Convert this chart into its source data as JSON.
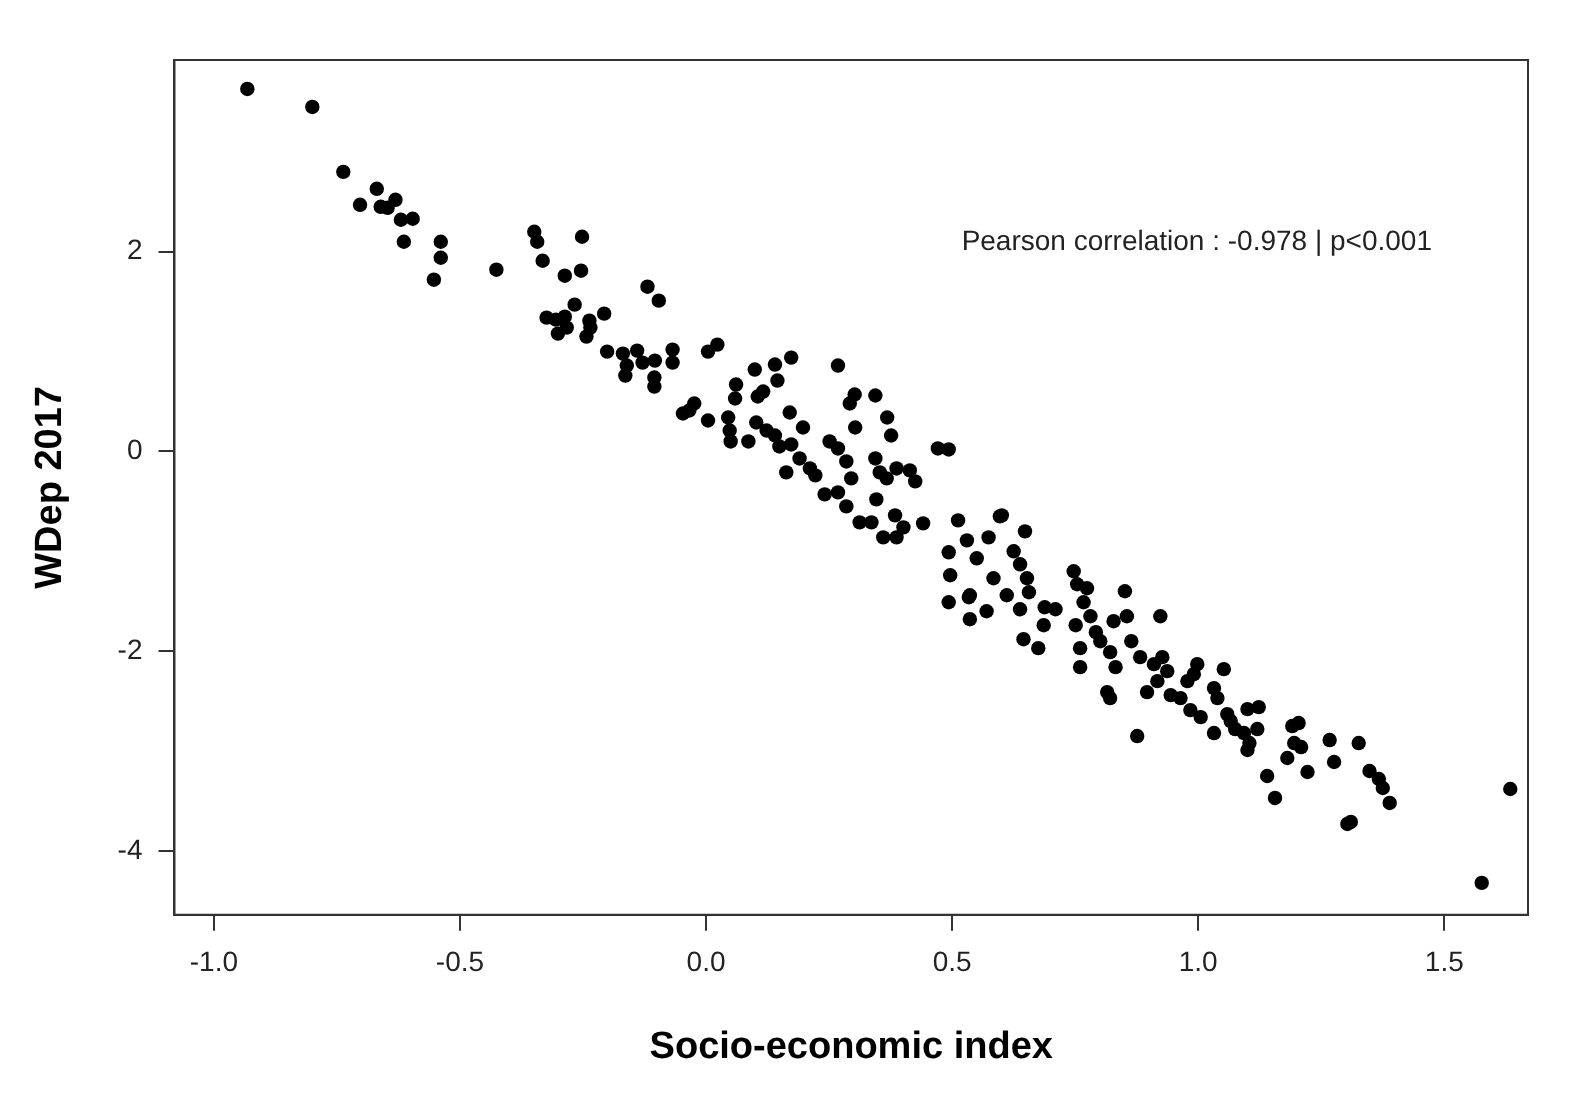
{
  "chart_data": {
    "type": "scatter",
    "xlabel": "Socio-economic index",
    "ylabel": "WDep 2017",
    "annotations": [
      "Pearson correlation : -0.978 | p<0.001"
    ],
    "xlim": [
      -1.08,
      1.67
    ],
    "ylim": [
      -4.64,
      3.92
    ],
    "xticks": [
      {
        "value": -1,
        "label": "-1.0"
      },
      -0.5,
      {
        "value": 0,
        "label": "0.0"
      },
      0.5,
      {
        "value": 1,
        "label": "1.0"
      },
      1.5
    ],
    "yticks": [
      -4,
      -2,
      0,
      2
    ],
    "grid": false,
    "legend": false,
    "marker": "circle",
    "series": [
      {
        "color": "#000000",
        "x": [
          -0.932,
          -0.8,
          -0.737,
          -0.669,
          -0.703,
          -0.661,
          -0.631,
          -0.647,
          -0.62,
          -0.596,
          -0.614,
          -0.539,
          -0.539,
          -0.553,
          -0.426,
          -0.349,
          -0.343,
          -0.332,
          -0.252,
          -0.254,
          -0.287,
          -0.119,
          -0.096,
          -0.267,
          -0.324,
          -0.305,
          -0.287,
          -0.237,
          -0.207,
          -0.301,
          -0.283,
          -0.243,
          -0.235,
          -0.201,
          -0.169,
          -0.14,
          -0.161,
          -0.164,
          -0.129,
          -0.104,
          -0.068,
          -0.068,
          -0.105,
          -0.105,
          -0.047,
          0.004,
          0.023,
          -0.034,
          -0.024,
          0.004,
          0.045,
          0.061,
          0.059,
          0.048,
          0.05,
          0.086,
          0.099,
          0.105,
          0.116,
          0.14,
          0.145,
          0.173,
          0.17,
          0.102,
          0.123,
          0.14,
          0.149,
          0.173,
          0.163,
          0.19,
          0.197,
          0.211,
          0.222,
          0.268,
          0.292,
          0.302,
          0.344,
          0.368,
          0.303,
          0.376,
          0.251,
          0.268,
          0.285,
          0.295,
          0.241,
          0.268,
          0.285,
          0.344,
          0.353,
          0.367,
          0.387,
          0.414,
          0.425,
          0.346,
          0.384,
          0.312,
          0.336,
          0.36,
          0.387,
          0.401,
          0.441,
          0.471,
          0.493,
          0.512,
          0.493,
          0.53,
          0.496,
          0.55,
          0.574,
          0.536,
          0.584,
          0.597,
          0.601,
          0.648,
          0.625,
          0.638,
          0.652,
          0.656,
          0.611,
          0.638,
          0.645,
          0.675,
          0.57,
          0.536,
          0.493,
          0.534,
          0.688,
          0.71,
          0.686,
          0.747,
          0.754,
          0.774,
          0.767,
          0.751,
          0.781,
          0.792,
          0.801,
          0.76,
          0.76,
          0.821,
          0.832,
          0.828,
          0.851,
          0.855,
          0.864,
          0.882,
          0.815,
          0.821,
          0.876,
          0.923,
          0.91,
          0.927,
          0.937,
          0.896,
          0.917,
          0.944,
          0.964,
          0.978,
          0.998,
          0.991,
          0.984,
          1.005,
          1.052,
          1.032,
          1.039,
          1.032,
          1.059,
          1.066,
          1.075,
          1.1,
          1.123,
          1.093,
          1.104,
          1.12,
          1.1,
          1.14,
          1.156,
          1.191,
          1.204,
          1.195,
          1.209,
          1.181,
          1.222,
          1.267,
          1.276,
          1.303,
          1.31,
          1.326,
          1.348,
          1.367,
          1.375,
          1.389,
          1.576,
          1.634
        ],
        "values": [
          3.63,
          3.45,
          2.8,
          2.63,
          2.47,
          2.45,
          2.52,
          2.44,
          2.32,
          2.33,
          2.1,
          2.1,
          1.94,
          1.72,
          1.82,
          2.2,
          2.1,
          1.91,
          2.15,
          1.81,
          1.76,
          1.65,
          1.51,
          1.47,
          1.34,
          1.32,
          1.35,
          1.31,
          1.38,
          1.18,
          1.24,
          1.15,
          1.24,
          1.0,
          0.98,
          1.01,
          0.86,
          0.76,
          0.89,
          0.91,
          1.02,
          0.89,
          0.74,
          0.65,
          0.38,
          1.0,
          1.07,
          0.41,
          0.48,
          0.31,
          0.34,
          0.67,
          0.53,
          0.21,
          0.1,
          0.1,
          0.82,
          0.55,
          0.6,
          0.87,
          0.71,
          0.94,
          0.39,
          0.29,
          0.21,
          0.16,
          0.05,
          0.07,
          -0.21,
          -0.07,
          0.24,
          -0.17,
          -0.24,
          0.86,
          0.48,
          0.57,
          0.56,
          0.34,
          0.24,
          0.16,
          0.1,
          0.03,
          -0.1,
          -0.27,
          -0.43,
          -0.41,
          -0.55,
          -0.07,
          -0.21,
          -0.27,
          -0.17,
          -0.19,
          -0.3,
          -0.48,
          -0.64,
          -0.71,
          -0.71,
          -0.86,
          -0.86,
          -0.76,
          -0.72,
          0.03,
          0.02,
          -0.69,
          -1.01,
          -0.89,
          -1.24,
          -1.07,
          -0.86,
          -1.44,
          -1.27,
          -0.65,
          -0.64,
          -0.8,
          -1.0,
          -1.13,
          -1.27,
          -1.41,
          -1.44,
          -1.58,
          -1.88,
          -1.97,
          -1.6,
          -1.68,
          -1.51,
          -1.46,
          -1.56,
          -1.58,
          -1.74,
          -1.2,
          -1.33,
          -1.37,
          -1.51,
          -1.74,
          -1.65,
          -1.81,
          -1.9,
          -1.97,
          -2.16,
          -2.01,
          -2.16,
          -1.7,
          -1.4,
          -1.65,
          -1.9,
          -2.06,
          -2.41,
          -2.47,
          -2.85,
          -1.65,
          -2.13,
          -2.06,
          -2.2,
          -2.41,
          -2.3,
          -2.44,
          -2.47,
          -2.3,
          -2.13,
          -2.23,
          -2.59,
          -2.66,
          -2.18,
          -2.37,
          -2.47,
          -2.82,
          -2.63,
          -2.7,
          -2.78,
          -2.58,
          -2.56,
          -2.82,
          -2.92,
          -2.78,
          -2.99,
          -3.25,
          -3.47,
          -2.75,
          -2.72,
          -2.92,
          -2.96,
          -3.07,
          -3.21,
          -2.89,
          -3.11,
          -3.73,
          -3.71,
          -2.92,
          -3.2,
          -3.28,
          -3.37,
          -3.52,
          -4.32,
          -3.38
        ]
      }
    ]
  }
}
